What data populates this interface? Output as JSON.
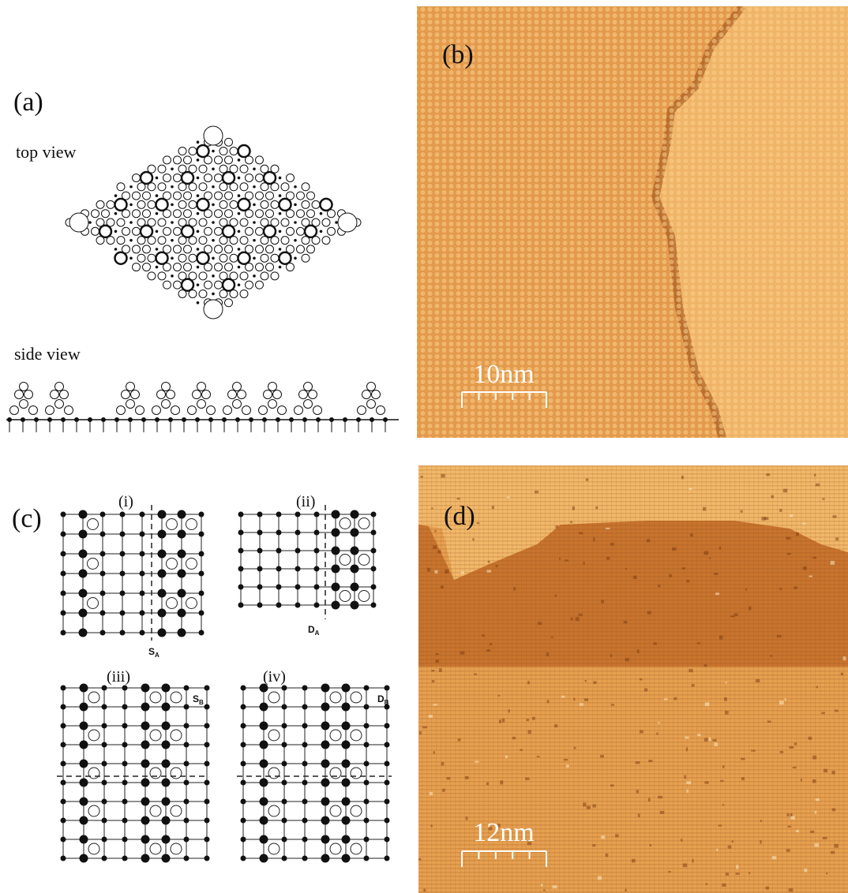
{
  "panels": {
    "a": {
      "label": "(a)",
      "top_view": "top view",
      "side_view": "side view"
    },
    "b": {
      "label": "(b)",
      "scale_bar": "10nm"
    },
    "c": {
      "label": "(c)",
      "subpanels": [
        {
          "label": "(i)",
          "marker": {
            "letter": "S",
            "subscript": "A"
          }
        },
        {
          "label": "(ii)",
          "marker": {
            "letter": "D",
            "subscript": "A"
          }
        },
        {
          "label": "(iii)",
          "marker": {
            "letter": "S",
            "subscript": "B"
          }
        },
        {
          "label": "(iv)",
          "marker": {
            "letter": "D",
            "subscript": "B"
          }
        }
      ]
    },
    "d": {
      "label": "(d)",
      "scale_bar": "12nm"
    }
  }
}
